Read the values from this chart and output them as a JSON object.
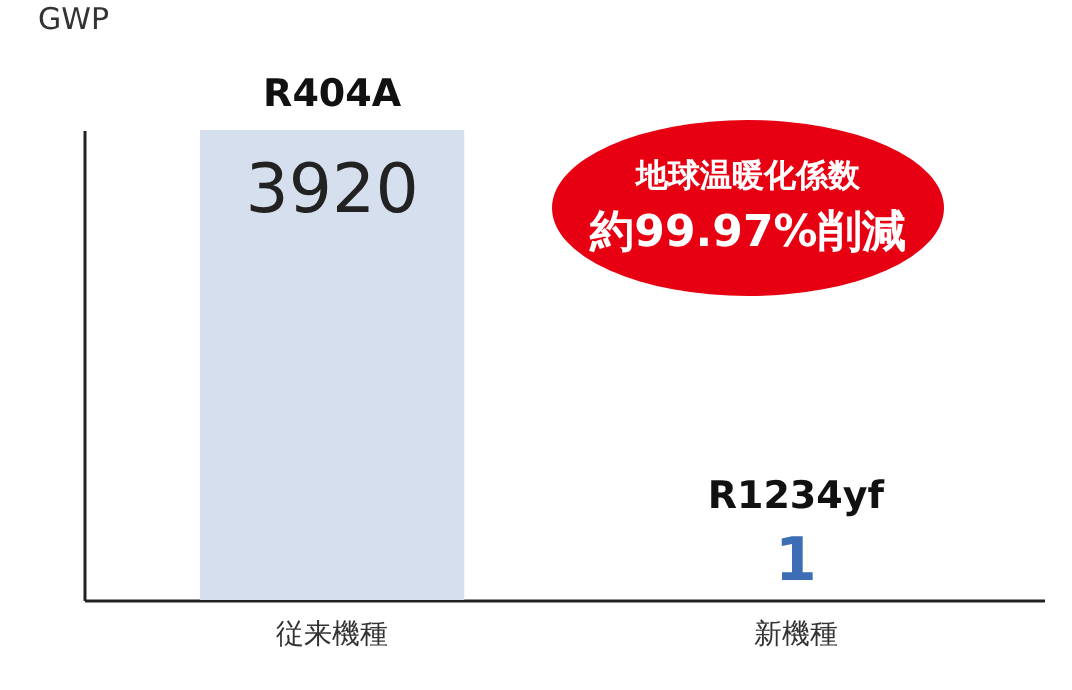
{
  "chart_data": {
    "type": "bar",
    "ylabel": "GWP",
    "categories": [
      "従来機種",
      "新機種"
    ],
    "values": [
      3920,
      1
    ],
    "colors": [
      "#d6dfee",
      "#3d6db5"
    ],
    "data_labels": true,
    "annotations": [
      "R404A",
      "R1234yf",
      "地球温暖化係数",
      "約99.97%削減"
    ]
  }
}
